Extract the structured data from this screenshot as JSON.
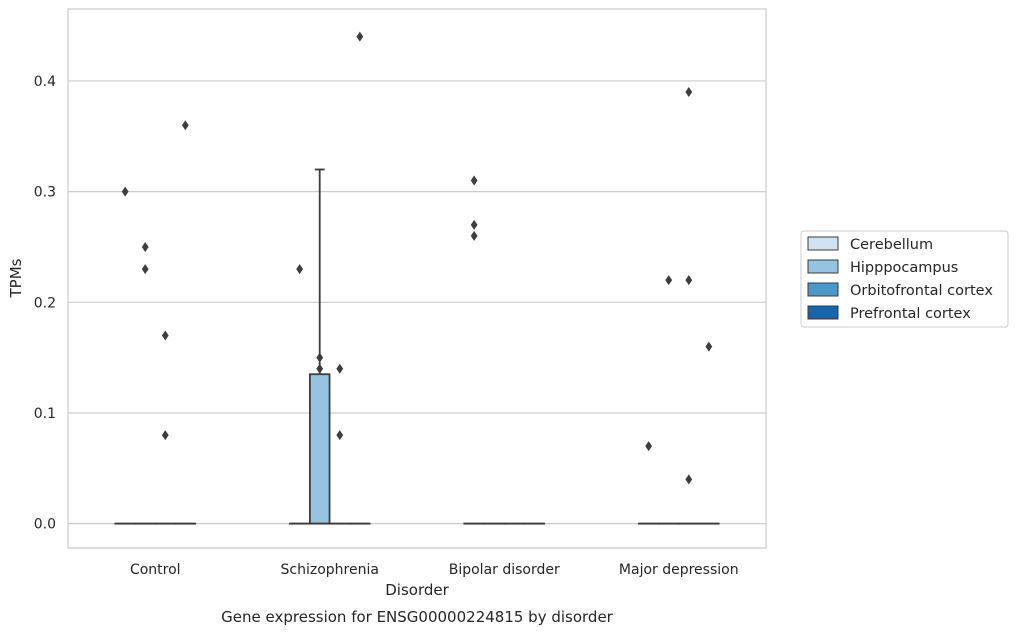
{
  "caption": "Gene expression for ENSG00000224815 by disorder",
  "chart_data": {
    "type": "box",
    "xlabel": "Disorder",
    "ylabel": "TPMs",
    "ylim": [
      -0.022,
      0.465
    ],
    "yticks": [
      0.0,
      0.1,
      0.2,
      0.3,
      0.4
    ],
    "ytick_labels": [
      "0.0",
      "0.1",
      "0.2",
      "0.3",
      "0.4"
    ],
    "grid": "horizontal",
    "legend_placement": "right",
    "categories": [
      "Control",
      "Schizophrenia",
      "Bipolar disorder",
      "Major depression"
    ],
    "series": [
      {
        "name": "Cerebellum",
        "color": "#d0e1f2",
        "boxes": [
          {
            "q1": 0,
            "median": 0,
            "q3": 0,
            "whisker_low": 0,
            "whisker_high": 0,
            "outliers": [
              0.3
            ]
          },
          {
            "q1": 0,
            "median": 0,
            "q3": 0,
            "whisker_low": 0,
            "whisker_high": 0,
            "outliers": [
              0.23
            ]
          },
          {
            "q1": 0,
            "median": 0,
            "q3": 0,
            "whisker_low": 0,
            "whisker_high": 0,
            "outliers": [
              0.31,
              0.27,
              0.26
            ]
          },
          {
            "q1": 0,
            "median": 0,
            "q3": 0,
            "whisker_low": 0,
            "whisker_high": 0,
            "outliers": [
              0.07
            ]
          }
        ]
      },
      {
        "name": "Hipppocampus",
        "color": "#94c4df",
        "boxes": [
          {
            "q1": 0,
            "median": 0,
            "q3": 0,
            "whisker_low": 0,
            "whisker_high": 0,
            "outliers": [
              0.25,
              0.23
            ]
          },
          {
            "q1": 0,
            "median": 0,
            "q3": 0.135,
            "whisker_low": 0,
            "whisker_high": 0.32,
            "outliers": [
              0.15,
              0.14
            ]
          },
          {
            "q1": 0,
            "median": 0,
            "q3": 0,
            "whisker_low": 0,
            "whisker_high": 0,
            "outliers": []
          },
          {
            "q1": 0,
            "median": 0,
            "q3": 0,
            "whisker_low": 0,
            "whisker_high": 0,
            "outliers": [
              0.22
            ]
          }
        ]
      },
      {
        "name": "Orbitofrontal cortex",
        "color": "#4a98c9",
        "boxes": [
          {
            "q1": 0,
            "median": 0,
            "q3": 0,
            "whisker_low": 0,
            "whisker_high": 0,
            "outliers": [
              0.17,
              0.08
            ]
          },
          {
            "q1": 0,
            "median": 0,
            "q3": 0,
            "whisker_low": 0,
            "whisker_high": 0,
            "outliers": [
              0.14,
              0.08
            ]
          },
          {
            "q1": 0,
            "median": 0,
            "q3": 0,
            "whisker_low": 0,
            "whisker_high": 0,
            "outliers": []
          },
          {
            "q1": 0,
            "median": 0,
            "q3": 0,
            "whisker_low": 0,
            "whisker_high": 0,
            "outliers": [
              0.39,
              0.22,
              0.04
            ]
          }
        ]
      },
      {
        "name": "Prefrontal cortex",
        "color": "#1764ab",
        "boxes": [
          {
            "q1": 0,
            "median": 0,
            "q3": 0,
            "whisker_low": 0,
            "whisker_high": 0,
            "outliers": [
              0.36
            ]
          },
          {
            "q1": 0,
            "median": 0,
            "q3": 0,
            "whisker_low": 0,
            "whisker_high": 0,
            "outliers": [
              0.44
            ]
          },
          {
            "q1": 0,
            "median": 0,
            "q3": 0,
            "whisker_low": 0,
            "whisker_high": 0,
            "outliers": []
          },
          {
            "q1": 0,
            "median": 0,
            "q3": 0,
            "whisker_low": 0,
            "whisker_high": 0,
            "outliers": [
              0.16
            ]
          }
        ]
      }
    ]
  }
}
